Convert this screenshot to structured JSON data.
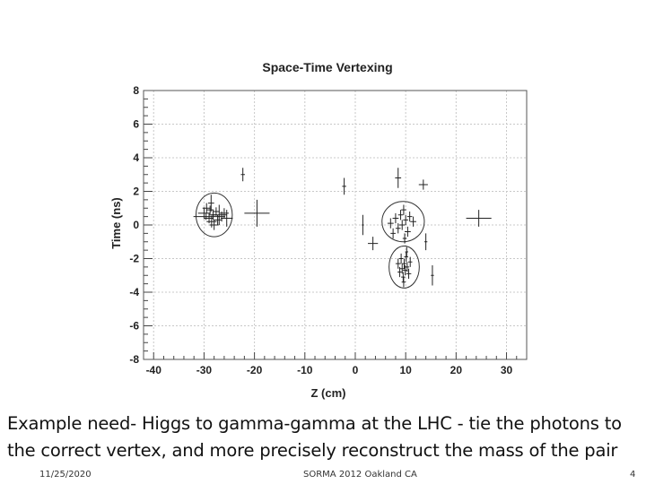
{
  "slide": {
    "caption_line1": "Example need- Higgs to gamma-gamma at the LHC - tie the photons to",
    "caption_line2": "the correct  vertex, and more precisely reconstruct the mass of the pair",
    "footer_date": "11/25/2020",
    "footer_event": "SORMA 2012  Oakland CA",
    "footer_page": "4"
  },
  "chart_data": {
    "type": "scatter",
    "title": "Space-Time Vertexing",
    "xlabel": "Z (cm)",
    "ylabel": "Time (ns)",
    "xlim": [
      -42,
      34
    ],
    "ylim": [
      -8,
      8
    ],
    "x_ticks": [
      -40,
      -30,
      -20,
      -10,
      0,
      10,
      20,
      30
    ],
    "y_ticks": [
      -8,
      -6,
      -4,
      -2,
      0,
      2,
      4,
      6,
      8
    ],
    "grid": true,
    "legend": "none",
    "points": [
      {
        "x": -30,
        "y": 0.7,
        "xerr": 1.2,
        "yerr": 0.35
      },
      {
        "x": -29.5,
        "y": 1.0,
        "xerr": 0.8,
        "yerr": 0.3
      },
      {
        "x": -29,
        "y": 0.4,
        "xerr": 0.9,
        "yerr": 0.3
      },
      {
        "x": -28.8,
        "y": 0.9,
        "xerr": 0.7,
        "yerr": 0.25
      },
      {
        "x": -28.5,
        "y": 0.2,
        "xerr": 1.0,
        "yerr": 0.35
      },
      {
        "x": -28.2,
        "y": 0.6,
        "xerr": 0.8,
        "yerr": 0.3
      },
      {
        "x": -28,
        "y": 0.0,
        "xerr": 0.9,
        "yerr": 0.3
      },
      {
        "x": -27.6,
        "y": 0.8,
        "xerr": 0.7,
        "yerr": 0.25
      },
      {
        "x": -27.3,
        "y": 0.3,
        "xerr": 0.8,
        "yerr": 0.3
      },
      {
        "x": -27,
        "y": 0.6,
        "xerr": 1.5,
        "yerr": 0.6
      },
      {
        "x": -26.5,
        "y": 0.5,
        "xerr": 0.7,
        "yerr": 0.3
      },
      {
        "x": -26,
        "y": 0.7,
        "xerr": 0.9,
        "yerr": 0.3
      },
      {
        "x": -29.6,
        "y": 0.5,
        "xerr": 2.5,
        "yerr": 0.2
      },
      {
        "x": -28.6,
        "y": 1.3,
        "xerr": 0.6,
        "yerr": 0.5
      },
      {
        "x": -25.5,
        "y": 0.4,
        "xerr": 1.2,
        "yerr": 0.5
      },
      {
        "x": -22.3,
        "y": 3.0,
        "xerr": 0.4,
        "yerr": 0.4
      },
      {
        "x": -19.5,
        "y": 0.7,
        "xerr": 2.5,
        "yerr": 0.8
      },
      {
        "x": -2.2,
        "y": 2.3,
        "xerr": 0.4,
        "yerr": 0.5
      },
      {
        "x": 1.5,
        "y": 0.0,
        "xerr": 0.2,
        "yerr": 0.6
      },
      {
        "x": 3.5,
        "y": -1.1,
        "xerr": 1.0,
        "yerr": 0.4
      },
      {
        "x": 8.5,
        "y": 2.8,
        "xerr": 0.6,
        "yerr": 0.6
      },
      {
        "x": 13.5,
        "y": 2.4,
        "xerr": 0.9,
        "yerr": 0.3
      },
      {
        "x": 24.5,
        "y": 0.4,
        "xerr": 2.5,
        "yerr": 0.5
      },
      {
        "x": 7,
        "y": 0.1,
        "xerr": 0.6,
        "yerr": 0.3
      },
      {
        "x": 7.5,
        "y": -0.5,
        "xerr": 0.5,
        "yerr": 0.3
      },
      {
        "x": 8,
        "y": 0.4,
        "xerr": 0.6,
        "yerr": 0.3
      },
      {
        "x": 8.5,
        "y": -0.2,
        "xerr": 0.5,
        "yerr": 0.3
      },
      {
        "x": 9,
        "y": 0.6,
        "xerr": 0.5,
        "yerr": 0.3
      },
      {
        "x": 9.3,
        "y": 0.0,
        "xerr": 0.6,
        "yerr": 0.3
      },
      {
        "x": 9.6,
        "y": 0.9,
        "xerr": 0.5,
        "yerr": 0.3
      },
      {
        "x": 10,
        "y": 0.3,
        "xerr": 0.5,
        "yerr": 0.3
      },
      {
        "x": 10.4,
        "y": -0.4,
        "xerr": 0.6,
        "yerr": 0.3
      },
      {
        "x": 10.8,
        "y": 0.5,
        "xerr": 0.5,
        "yerr": 0.3
      },
      {
        "x": 11.5,
        "y": 0.2,
        "xerr": 0.6,
        "yerr": 0.3
      },
      {
        "x": 9.8,
        "y": -0.8,
        "xerr": 0.4,
        "yerr": 0.3
      },
      {
        "x": 14,
        "y": -1.0,
        "xerr": 0.3,
        "yerr": 0.5
      },
      {
        "x": 8.5,
        "y": -2.3,
        "xerr": 0.5,
        "yerr": 0.3
      },
      {
        "x": 8.8,
        "y": -2.8,
        "xerr": 0.4,
        "yerr": 0.3
      },
      {
        "x": 9.1,
        "y": -2.0,
        "xerr": 0.4,
        "yerr": 0.3
      },
      {
        "x": 9.3,
        "y": -2.6,
        "xerr": 0.5,
        "yerr": 0.3
      },
      {
        "x": 9.5,
        "y": -3.1,
        "xerr": 0.4,
        "yerr": 0.3
      },
      {
        "x": 9.7,
        "y": -2.3,
        "xerr": 0.4,
        "yerr": 0.3
      },
      {
        "x": 9.9,
        "y": -2.7,
        "xerr": 0.5,
        "yerr": 0.3
      },
      {
        "x": 10.1,
        "y": -1.9,
        "xerr": 0.4,
        "yerr": 0.3
      },
      {
        "x": 10.3,
        "y": -2.5,
        "xerr": 0.4,
        "yerr": 0.3
      },
      {
        "x": 10.6,
        "y": -2.9,
        "xerr": 0.5,
        "yerr": 0.3
      },
      {
        "x": 10.9,
        "y": -2.2,
        "xerr": 0.4,
        "yerr": 0.3
      },
      {
        "x": 9.6,
        "y": -3.4,
        "xerr": 0.4,
        "yerr": 0.3
      },
      {
        "x": 10.2,
        "y": -1.6,
        "xerr": 0.3,
        "yerr": 0.3
      },
      {
        "x": 15.3,
        "y": -3.0,
        "xerr": 0.3,
        "yerr": 0.6
      }
    ],
    "clusters": [
      {
        "x": -28,
        "y": 0.6,
        "rx": 3.6,
        "ry": 1.3
      },
      {
        "x": 9.5,
        "y": 0.2,
        "rx": 4.2,
        "ry": 1.2
      },
      {
        "x": 9.7,
        "y": -2.5,
        "rx": 3.0,
        "ry": 1.25
      }
    ]
  }
}
